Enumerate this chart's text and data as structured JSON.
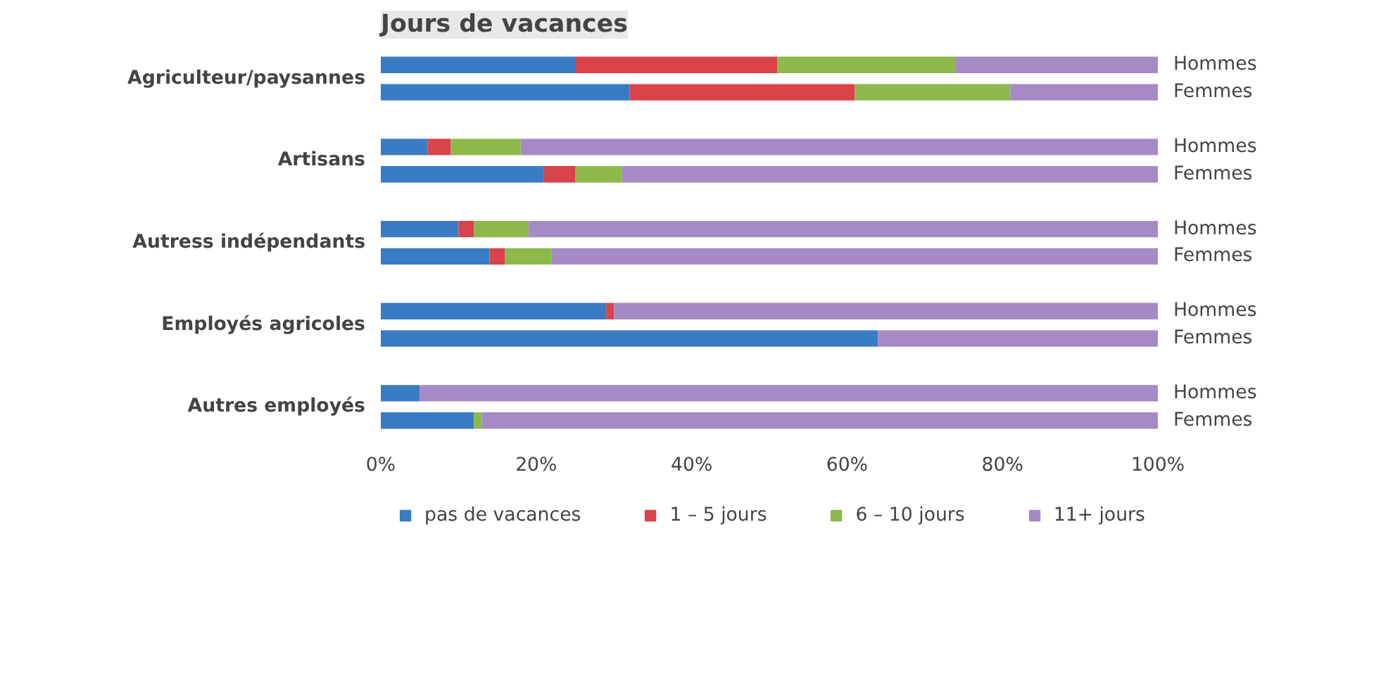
{
  "chart_data": {
    "type": "bar",
    "orientation": "horizontal",
    "stacked": true,
    "title": "Jours de vacances",
    "categories": [
      "Hommes",
      "Femmes",
      "Hommes",
      "Femmes",
      "Hommes",
      "Femmes",
      "Hommes",
      "Femmes",
      "Hommes",
      "Femmes"
    ],
    "annotations": [
      "Agriculteur/paysannes",
      "Artisans",
      "Autress indépendants",
      "Employés agricoles",
      "Autres employés"
    ],
    "series": [
      {
        "name": "pas de vacances",
        "color": "#3a7cc4",
        "values": [
          25,
          32,
          6,
          21,
          10,
          14,
          29,
          64,
          5,
          12
        ]
      },
      {
        "name": "1 – 5 jours",
        "color": "#d9434a",
        "values": [
          26,
          29,
          3,
          4,
          2,
          2,
          1,
          0,
          0,
          0
        ]
      },
      {
        "name": "6 – 10 jours",
        "color": "#8db84a",
        "values": [
          23,
          20,
          9,
          6,
          7,
          6,
          0,
          0,
          0,
          1
        ]
      },
      {
        "name": "11+ jours",
        "color": "#a58ac6",
        "values": [
          26,
          19,
          82,
          69,
          81,
          78,
          70,
          36,
          95,
          87
        ]
      }
    ],
    "xlim": [
      0,
      100
    ],
    "xticks": [
      {
        "value": 0,
        "label": "0%"
      },
      {
        "value": 20,
        "label": "20%"
      },
      {
        "value": 40,
        "label": "40%"
      },
      {
        "value": 60,
        "label": "60%"
      },
      {
        "value": 80,
        "label": "80%"
      },
      {
        "value": 100,
        "label": "100%"
      }
    ],
    "legend": "bottom",
    "grid": false
  }
}
